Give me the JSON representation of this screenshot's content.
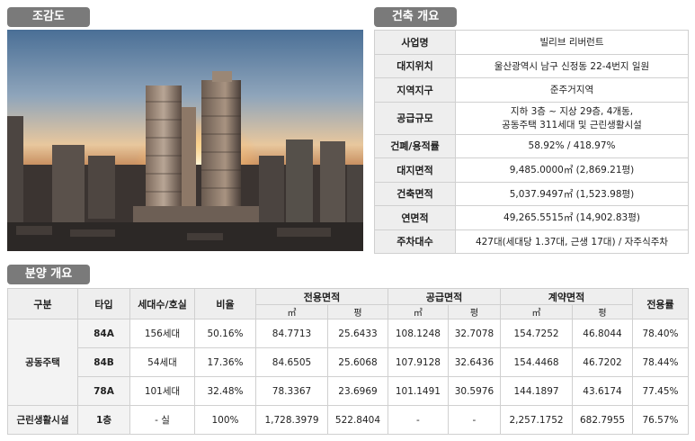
{
  "sections": {
    "birdseye": "조감도",
    "building": "건축 개요",
    "sale": "분양 개요"
  },
  "building_overview": [
    {
      "label": "사업명",
      "value": "빌리브 리버런트"
    },
    {
      "label": "대지위치",
      "value": "울산광역시 남구 신정동 22-4번지 일원"
    },
    {
      "label": "지역지구",
      "value": "준주거지역"
    },
    {
      "label": "공급규모",
      "value": "지하 3층 ~ 지상 29층, 4개동,",
      "value2": "공동주택 311세대 및 근린생활시설"
    },
    {
      "label": "건폐/용적률",
      "value": "58.92% / 418.97%"
    },
    {
      "label": "대지면적",
      "value": "9,485.0000㎡ (2,869.21평)"
    },
    {
      "label": "건축면적",
      "value": "5,037.9497㎡ (1,523.98평)"
    },
    {
      "label": "연면적",
      "value": "49,265.5515㎡ (14,902.83평)"
    },
    {
      "label": "주차대수",
      "value": "427대(세대당 1.37대, 근생 17대) / 자주식주차"
    }
  ],
  "sale_headers": {
    "category": "구분",
    "type": "타입",
    "units": "세대수/호실",
    "ratio": "비율",
    "exclusive": "전용면적",
    "supply": "공급면적",
    "contract": "계약면적",
    "exclusive_ratio": "전용률",
    "sqm": "㎡",
    "pyeong": "평"
  },
  "sale_groups": {
    "housing": "공동주택",
    "commercial": "근린생활시설"
  },
  "sale_rows": [
    {
      "type": "84A",
      "units": "156세대",
      "ratio": "50.16%",
      "ex_m": "84.7713",
      "ex_p": "25.6433",
      "sup_m": "108.1248",
      "sup_p": "32.7078",
      "con_m": "154.7252",
      "con_p": "46.8044",
      "ex_ratio": "78.40%"
    },
    {
      "type": "84B",
      "units": "54세대",
      "ratio": "17.36%",
      "ex_m": "84.6505",
      "ex_p": "25.6068",
      "sup_m": "107.9128",
      "sup_p": "32.6436",
      "con_m": "154.4468",
      "con_p": "46.7202",
      "ex_ratio": "78.44%"
    },
    {
      "type": "78A",
      "units": "101세대",
      "ratio": "32.48%",
      "ex_m": "78.3367",
      "ex_p": "23.6969",
      "sup_m": "101.1491",
      "sup_p": "30.5976",
      "con_m": "144.1897",
      "con_p": "43.6174",
      "ex_ratio": "77.45%"
    },
    {
      "type": "1층",
      "units": "- 실",
      "ratio": "100%",
      "ex_m": "1,728.3979",
      "ex_p": "522.8404",
      "sup_m": "-",
      "sup_p": "-",
      "con_m": "2,257.1752",
      "con_p": "682.7955",
      "ex_ratio": "76.57%"
    }
  ]
}
